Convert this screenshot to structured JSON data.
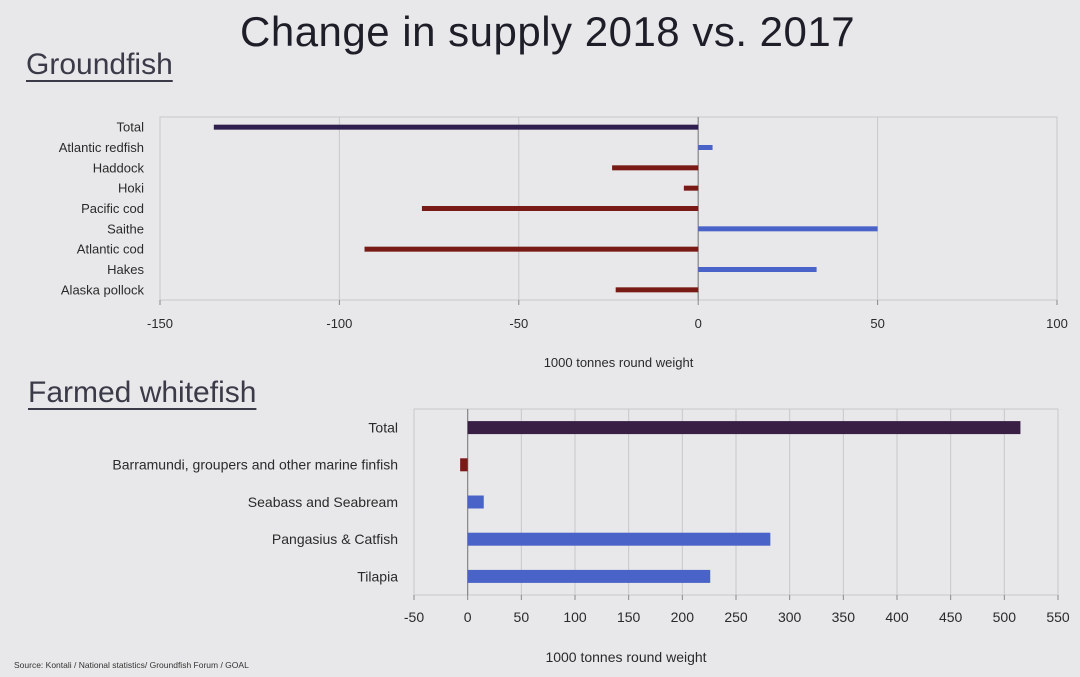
{
  "title": "Change in supply 2018 vs. 2017",
  "source": "Source: Kontali / National statistics/ Groundfish Forum / GOAL",
  "colors": {
    "increase": "#4a63c8",
    "decrease": "#7a1a16",
    "total": "#3a1f45",
    "grid": "#c8c8cc",
    "axis": "#888888",
    "text": "#2a2a2a"
  },
  "chart_data": [
    {
      "type": "bar",
      "orientation": "horizontal",
      "title": "Groundfish",
      "xlabel": "1000 tonnes round weight",
      "xlim": [
        -150,
        100
      ],
      "xticks": [
        -150,
        -100,
        -50,
        0,
        50,
        100
      ],
      "grid": true,
      "categories": [
        "Total",
        "Atlantic redfish",
        "Haddock",
        "Hoki",
        "Pacific cod",
        "Saithe",
        "Atlantic cod",
        "Hakes",
        "Alaska pollock"
      ],
      "values": [
        -135,
        4,
        -24,
        -4,
        -77,
        50,
        -93,
        33,
        -23
      ]
    },
    {
      "type": "bar",
      "orientation": "horizontal",
      "title": "Farmed whitefish",
      "xlabel": "1000 tonnes round weight",
      "xlim": [
        -50,
        550
      ],
      "xticks": [
        -50,
        0,
        50,
        100,
        150,
        200,
        250,
        300,
        350,
        400,
        450,
        500,
        550
      ],
      "grid": true,
      "categories": [
        "Total",
        "Barramundi, groupers and other marine finfish",
        "Seabass and Seabream",
        "Pangasius & Catfish",
        "Tilapia"
      ],
      "values": [
        515,
        -7,
        15,
        282,
        226
      ]
    }
  ]
}
